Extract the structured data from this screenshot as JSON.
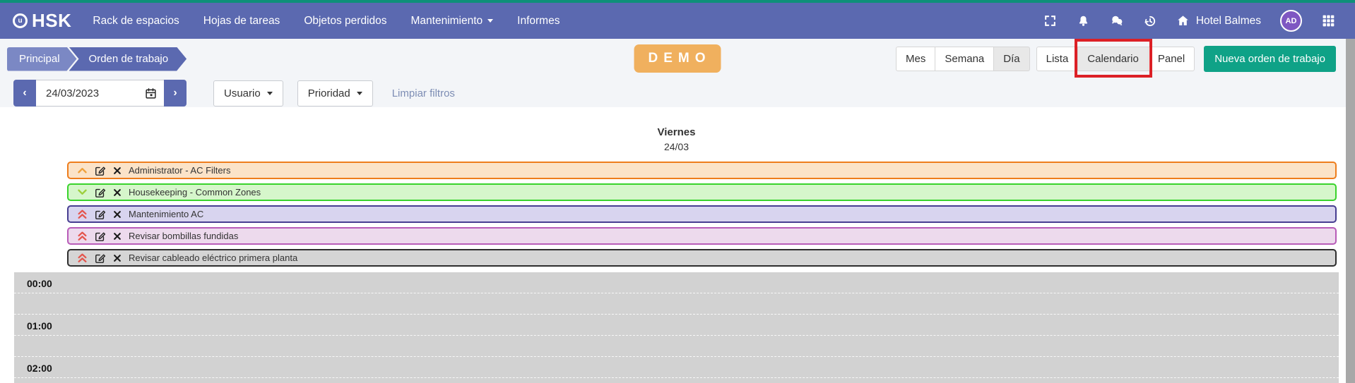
{
  "colors": {
    "navbar": "#5b69b0",
    "top_border": "#0e9078",
    "accent_green": "#0fa287",
    "demo_orange": "#f0b05e",
    "highlight_red": "#dc2026",
    "active_button_bg": "#e8e8e8"
  },
  "navbar": {
    "logo": "HSK",
    "logo_mark": "u",
    "items": [
      {
        "label": "Rack de espacios",
        "caret": false
      },
      {
        "label": "Hojas de tareas",
        "caret": false
      },
      {
        "label": "Objetos perdidos",
        "caret": false
      },
      {
        "label": "Mantenimiento",
        "caret": true
      },
      {
        "label": "Informes",
        "caret": false
      }
    ],
    "icons": [
      "fullscreen",
      "notifications",
      "messages",
      "history",
      "home",
      "apps-grid"
    ],
    "hotel_name": "Hotel Balmes",
    "avatar_initials": "AD"
  },
  "breadcrumb": {
    "items": [
      "Principal",
      "Orden de trabajo"
    ]
  },
  "demo_badge": {
    "text": "DEMO"
  },
  "view_switcher": {
    "period_buttons": [
      {
        "label": "Mes",
        "active": false,
        "highlighted": false
      },
      {
        "label": "Semana",
        "active": false,
        "highlighted": false
      },
      {
        "label": "Día",
        "active": true,
        "highlighted": false
      }
    ],
    "mode_buttons": [
      {
        "label": "Lista",
        "active": false,
        "highlighted": false
      },
      {
        "label": "Calendario",
        "active": true,
        "highlighted": true
      },
      {
        "label": "Panel",
        "active": false,
        "highlighted": false
      }
    ],
    "new_order_label": "Nueva orden de trabajo"
  },
  "filters": {
    "date_value": "24/03/2023",
    "user_label": "Usuario",
    "priority_label": "Prioridad",
    "clear_label": "Limpiar filtros"
  },
  "calendar": {
    "day_name": "Viernes",
    "day_date": "24/03",
    "events": [
      {
        "title": "Administrator - AC Filters",
        "bg": "#fbe3c8",
        "border": "#ee7d1c",
        "chevron": "up",
        "chevron_color": "#f0a23c"
      },
      {
        "title": "Housekeeping - Common Zones",
        "bg": "#d6f6cb",
        "border": "#39d32c",
        "chevron": "down",
        "chevron_color": "#9dcf3d"
      },
      {
        "title": "Mantenimiento AC",
        "bg": "#d8d4ef",
        "border": "#473e91",
        "chevron": "double-up",
        "chevron_color": "#e4564e"
      },
      {
        "title": "Revisar bombillas fundidas",
        "bg": "#eddaed",
        "border": "#b85cb8",
        "chevron": "double-up",
        "chevron_color": "#e4564e"
      },
      {
        "title": "Revisar cableado eléctrico primera planta",
        "bg": "#d5d5d5",
        "border": "#2e2e2e",
        "chevron": "double-up",
        "chevron_color": "#e4564e"
      }
    ],
    "time_slots": [
      "00:00",
      "01:00",
      "02:00"
    ]
  }
}
